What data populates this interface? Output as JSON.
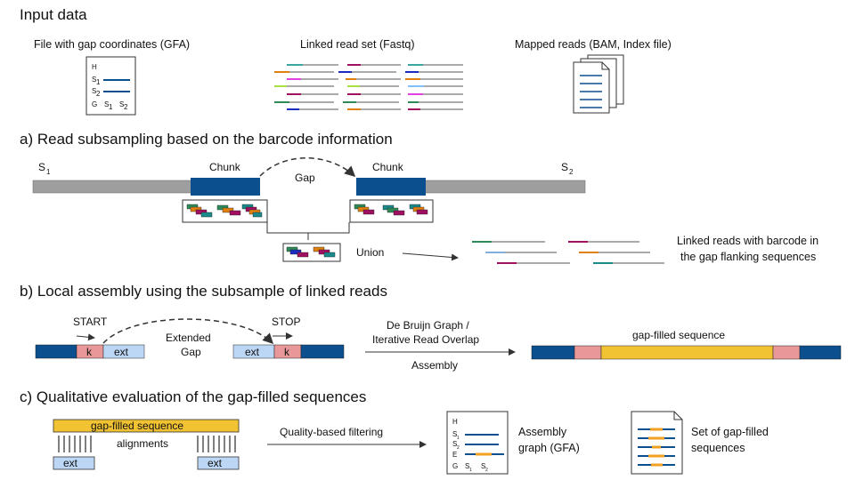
{
  "input_data": {
    "heading": "Input data",
    "gfa_label": "File with gap coordinates (GFA)",
    "gfa_lines": [
      "H",
      "S1",
      "S2",
      "G S1 S2"
    ],
    "gfa_H": "H",
    "gfa_S": "S",
    "gfa_G": "G",
    "sub_1": "1",
    "sub_2": "2",
    "fastq_label": "Linked read set (Fastq)",
    "bam_label": "Mapped reads (BAM, Index file)"
  },
  "section_a": {
    "heading": "a) Read subsampling based on the barcode information",
    "s1": "S",
    "s2": "S",
    "chunk_left": "Chunk",
    "chunk_right": "Chunk",
    "gap": "Gap",
    "union": "Union",
    "linked_reads_line1": "Linked reads with barcode in",
    "linked_reads_line2": "the gap flanking sequences"
  },
  "section_b": {
    "heading": "b) Local assembly using the subsample of linked reads",
    "start": "START",
    "stop": "STOP",
    "k": "k",
    "ext": "ext",
    "extended_gap_line1": "Extended",
    "extended_gap_line2": "Gap",
    "method_line1": "De Bruijn Graph /",
    "method_line2": "Iterative Read Overlap",
    "assembly": "Assembly",
    "gap_filled": "gap-filled sequence"
  },
  "section_c": {
    "heading": "c) Qualitative evaluation of the gap-filled sequences",
    "gap_filled_bar": "gap-filled sequence",
    "alignments": "alignments",
    "ext": "ext",
    "filtering": "Quality-based filtering",
    "assembly_graph_line1": "Assembly",
    "assembly_graph_line2": "graph (GFA)",
    "gfa_E": "E",
    "set_line1": "Set of gap-filled",
    "set_line2": "sequences"
  },
  "colors": {
    "blue": "#0b4f8f",
    "gray": "#9e9e9e",
    "pink": "#e89898",
    "light_blue": "#bcd7f5",
    "gold": "#f1c232"
  }
}
